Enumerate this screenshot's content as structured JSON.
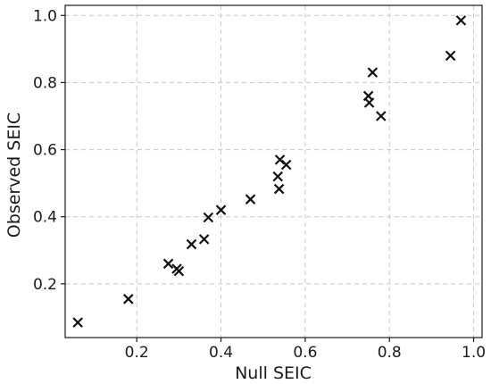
{
  "chart_data": {
    "type": "scatter",
    "title": "",
    "xlabel": "Null SEIC",
    "ylabel": "Observed SEIC",
    "xlim": [
      0.03,
      1.02
    ],
    "ylim": [
      0.04,
      1.03
    ],
    "xticks": [
      0.2,
      0.4,
      0.6,
      0.8,
      1.0
    ],
    "yticks": [
      0.2,
      0.4,
      0.6,
      0.8,
      1.0
    ],
    "xtick_labels": [
      "0.2",
      "0.4",
      "0.6",
      "0.8",
      "1.0"
    ],
    "ytick_labels": [
      "0.2",
      "0.4",
      "0.6",
      "0.8",
      "1.0"
    ],
    "grid": true,
    "marker": "x",
    "marker_color": "#111111",
    "points": [
      {
        "x": 0.06,
        "y": 0.085
      },
      {
        "x": 0.18,
        "y": 0.155
      },
      {
        "x": 0.275,
        "y": 0.26
      },
      {
        "x": 0.295,
        "y": 0.245
      },
      {
        "x": 0.3,
        "y": 0.238
      },
      {
        "x": 0.33,
        "y": 0.318
      },
      {
        "x": 0.36,
        "y": 0.333
      },
      {
        "x": 0.37,
        "y": 0.398
      },
      {
        "x": 0.4,
        "y": 0.42
      },
      {
        "x": 0.47,
        "y": 0.452
      },
      {
        "x": 0.535,
        "y": 0.52
      },
      {
        "x": 0.538,
        "y": 0.483
      },
      {
        "x": 0.54,
        "y": 0.57
      },
      {
        "x": 0.555,
        "y": 0.555
      },
      {
        "x": 0.75,
        "y": 0.76
      },
      {
        "x": 0.752,
        "y": 0.74
      },
      {
        "x": 0.76,
        "y": 0.83
      },
      {
        "x": 0.78,
        "y": 0.7
      },
      {
        "x": 0.945,
        "y": 0.88
      },
      {
        "x": 0.97,
        "y": 0.985
      }
    ]
  }
}
